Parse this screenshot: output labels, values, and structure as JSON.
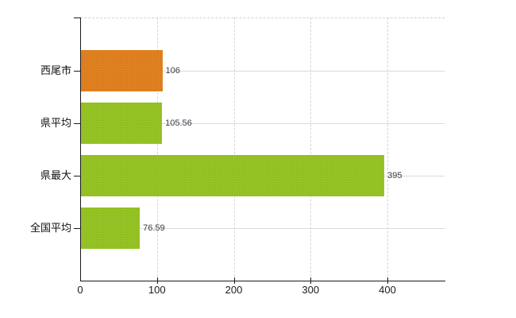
{
  "chart_data": {
    "type": "bar",
    "orientation": "horizontal",
    "title": "",
    "xlabel": "",
    "ylabel": "",
    "xlim": [
      0,
      475
    ],
    "grid": {
      "vertical": "dashed",
      "horizontal": "solid"
    },
    "legend_position": "none",
    "categories": [
      "西尾市",
      "県平均",
      "県最大",
      "全国平均"
    ],
    "values": [
      106,
      105.56,
      395,
      76.59
    ],
    "rows": [
      {
        "label": "西尾市",
        "value": 106,
        "display_value": "106",
        "color": "#e0801f"
      },
      {
        "label": "県平均",
        "value": 105.56,
        "display_value": "105.56",
        "color": "#95c325"
      },
      {
        "label": "県最大",
        "value": 395,
        "display_value": "395",
        "color": "#95c325"
      },
      {
        "label": "全国平均",
        "value": 76.59,
        "display_value": "76.59",
        "color": "#95c325"
      }
    ],
    "x_ticks": [
      {
        "value": 0,
        "label": "0"
      },
      {
        "value": 100,
        "label": "100"
      },
      {
        "value": 200,
        "label": "200"
      },
      {
        "value": 300,
        "label": "300"
      },
      {
        "value": 400,
        "label": "400"
      }
    ]
  },
  "colors": {
    "bar_orange": "#e0801f",
    "bar_green": "#95c325",
    "axis": "#1a1a1a",
    "gridline_horizontal": "#d9ddd4",
    "gridline_vertical": "#dbd4d4",
    "value_label": "#3c3c46",
    "tick_label": "#1a1a22",
    "background": "#ffffff"
  }
}
